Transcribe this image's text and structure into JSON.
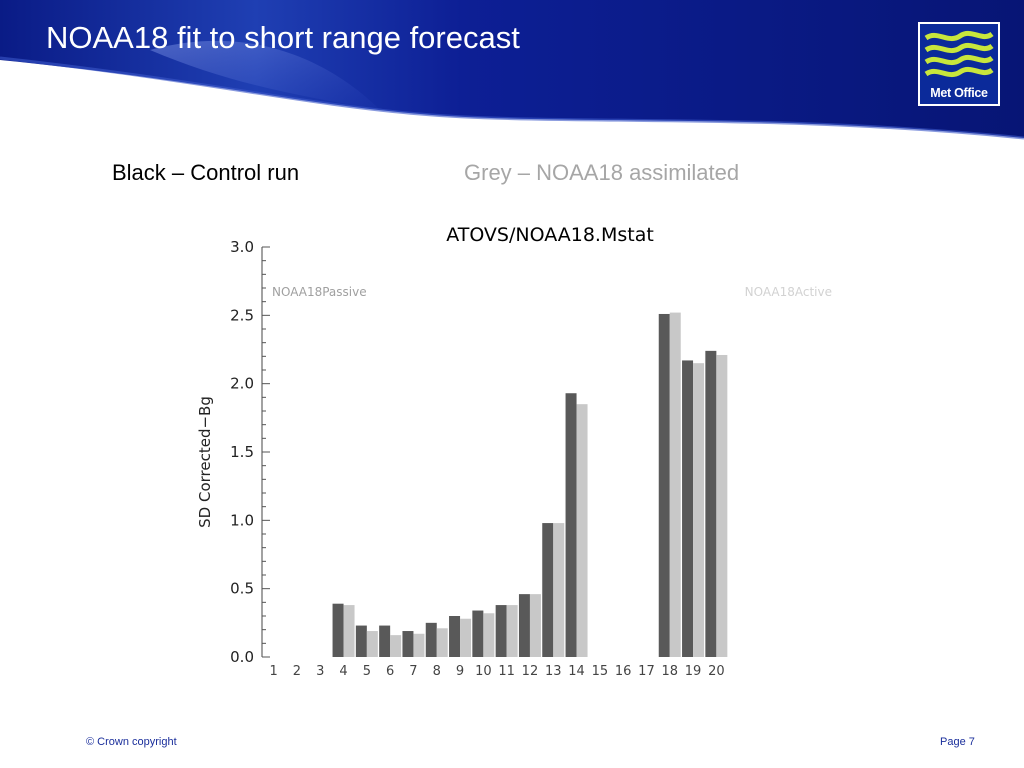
{
  "slide": {
    "title": "NOAA18 fit to short range forecast",
    "legend_black": "Black – Control run",
    "legend_grey": "Grey – NOAA18 assimilated",
    "logo_text": "Met Office",
    "footer_copyright": "© Crown copyright",
    "footer_page": "Page 7"
  },
  "colors": {
    "header_blue": "#0b1f8f",
    "control_bar": "#595959",
    "assimilated_bar": "#c8c8c8",
    "logo_green": "#c8e63c"
  },
  "chart_data": {
    "type": "bar",
    "title": "ATOVS/NOAA18.Mstat",
    "xlabel": "",
    "ylabel": "SD Corrected−Bg",
    "ylim": [
      0,
      3.0
    ],
    "yticks": [
      "0.0",
      "0.5",
      "1.0",
      "1.5",
      "2.0",
      "2.5",
      "3.0"
    ],
    "categories": [
      "1",
      "2",
      "3",
      "4",
      "5",
      "6",
      "7",
      "8",
      "9",
      "10",
      "11",
      "12",
      "13",
      "14",
      "15",
      "16",
      "17",
      "18",
      "19",
      "20"
    ],
    "annotations": [
      "NOAA18Passive",
      "NOAA18Active"
    ],
    "grid": false,
    "series": [
      {
        "color": "#595959",
        "values": [
          0,
          0,
          0,
          0.39,
          0.23,
          0.23,
          0.19,
          0.25,
          0.3,
          0.34,
          0.38,
          0.46,
          0.98,
          1.93,
          0,
          0,
          0,
          2.51,
          2.17,
          2.24
        ]
      },
      {
        "color": "#c8c8c8",
        "values": [
          0,
          0,
          0,
          0.38,
          0.19,
          0.16,
          0.17,
          0.21,
          0.28,
          0.32,
          0.38,
          0.46,
          0.98,
          1.85,
          0,
          0,
          0,
          2.52,
          2.15,
          2.21
        ]
      }
    ]
  }
}
